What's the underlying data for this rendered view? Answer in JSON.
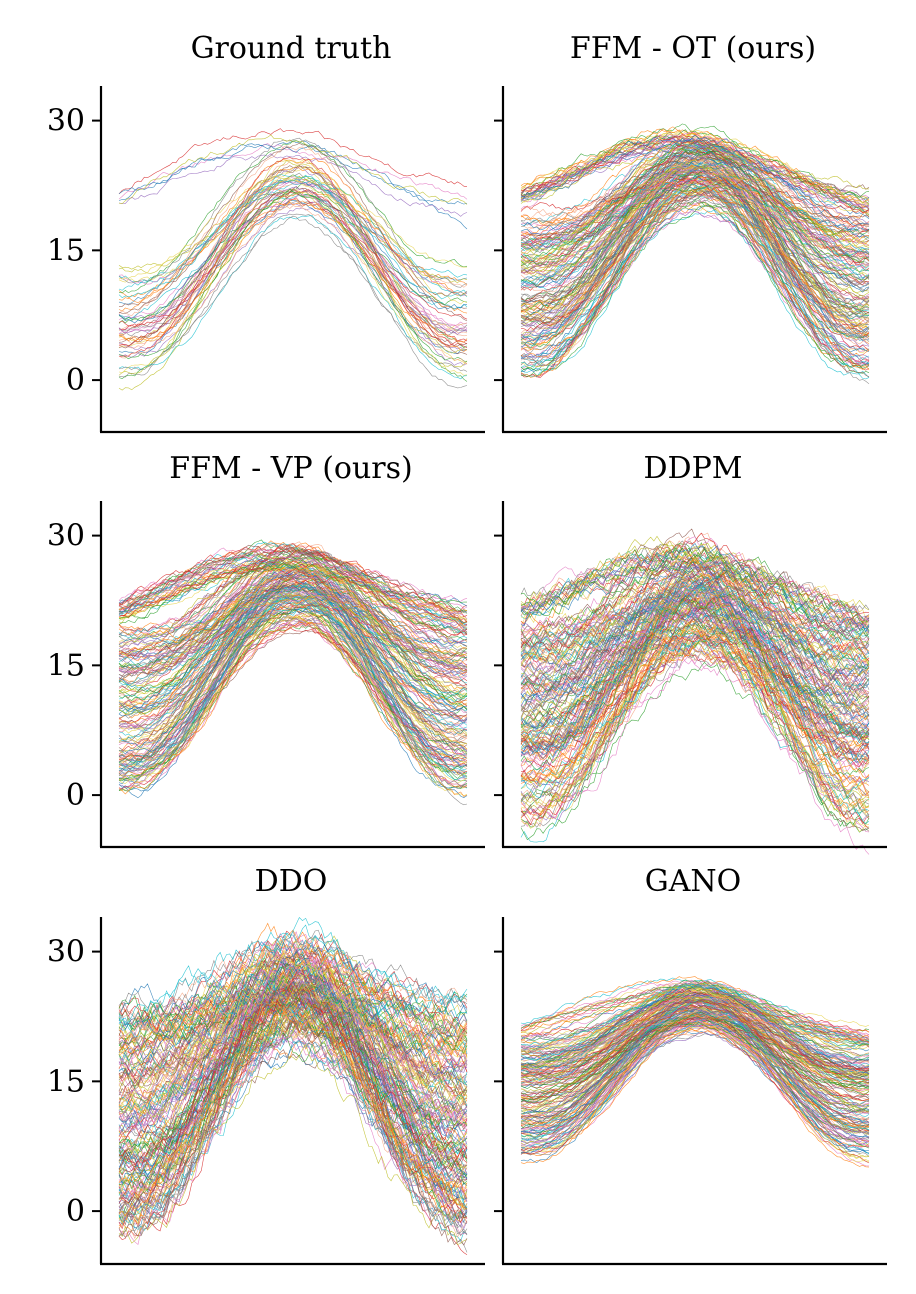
{
  "chart_data": [
    {
      "type": "line",
      "title": "Ground truth",
      "ylim": [
        -6,
        34
      ],
      "yticks": [
        0,
        15,
        30
      ],
      "ytick_labels": [
        "0",
        "15",
        "30"
      ],
      "samples": 60,
      "profile": {
        "low_min": 0,
        "low_max": 14,
        "peak_min": 18,
        "peak_max": 29,
        "flat_fraction": 0.12,
        "flat_level": 18.5,
        "noise": 0.45,
        "bump": 3
      }
    },
    {
      "type": "line",
      "title": "FFM - OT (ours)",
      "ylim": [
        -6,
        34
      ],
      "yticks": [
        0,
        15,
        30
      ],
      "ytick_labels": [
        "",
        "",
        ""
      ],
      "samples": 200,
      "profile": {
        "low_min": 1,
        "low_max": 19,
        "peak_min": 19,
        "peak_max": 29,
        "flat_fraction": 0.15,
        "flat_level": 18.5,
        "noise": 0.55,
        "bump": 3
      }
    },
    {
      "type": "line",
      "title": "FFM - VP (ours)",
      "ylim": [
        -6,
        34
      ],
      "yticks": [
        0,
        15,
        30
      ],
      "ytick_labels": [
        "0",
        "15",
        "30"
      ],
      "samples": 200,
      "profile": {
        "low_min": 1,
        "low_max": 19,
        "peak_min": 19,
        "peak_max": 29,
        "flat_fraction": 0.15,
        "flat_level": 18.5,
        "noise": 0.55,
        "bump": 3
      }
    },
    {
      "type": "line",
      "title": "DDPM",
      "ylim": [
        -6,
        34
      ],
      "yticks": [
        0,
        15,
        30
      ],
      "ytick_labels": [
        "",
        "",
        ""
      ],
      "samples": 200,
      "profile": {
        "low_min": -4,
        "low_max": 19,
        "peak_min": 14,
        "peak_max": 29,
        "flat_fraction": 0.15,
        "flat_level": 18.5,
        "noise": 1.1,
        "bump": 3
      }
    },
    {
      "type": "line",
      "title": "DDO",
      "ylim": [
        -6,
        34
      ],
      "yticks": [
        0,
        15,
        30
      ],
      "ytick_labels": [
        "0",
        "15",
        "30"
      ],
      "samples": 200,
      "profile": {
        "low_min": -3,
        "low_max": 24,
        "peak_min": 18,
        "peak_max": 33,
        "flat_fraction": 0.0,
        "flat_level": 18.5,
        "noise": 1.5,
        "bump": 3
      }
    },
    {
      "type": "line",
      "title": "GANO",
      "ylim": [
        -6,
        34
      ],
      "yticks": [
        0,
        15,
        30
      ],
      "ytick_labels": [
        "",
        "",
        ""
      ],
      "samples": 200,
      "profile": {
        "low_min": 6,
        "low_max": 20,
        "peak_min": 20,
        "peak_max": 27,
        "flat_fraction": 0.08,
        "flat_level": 18.5,
        "noise": 0.35,
        "bump": 1.5
      }
    }
  ],
  "palette": [
    "#1f77b4",
    "#ff7f0e",
    "#2ca02c",
    "#d62728",
    "#9467bd",
    "#8c564b",
    "#e377c2",
    "#7f7f7f",
    "#bcbd22",
    "#17becf",
    "#e8d44d",
    "#f4a582"
  ]
}
